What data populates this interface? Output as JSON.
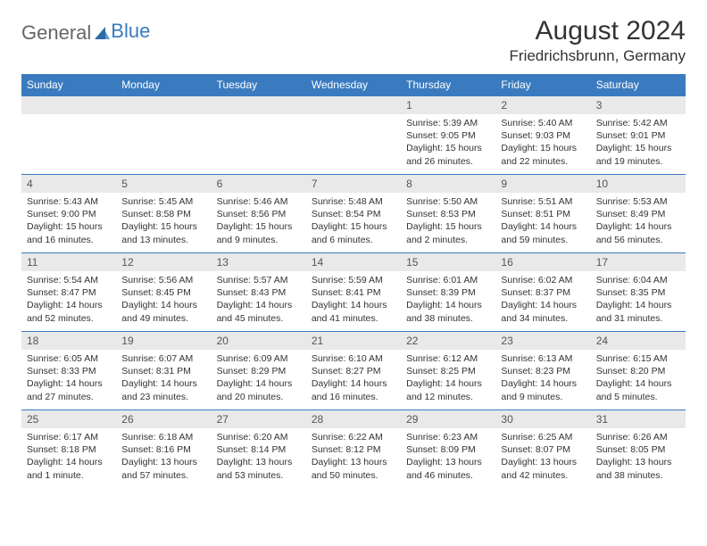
{
  "logo": {
    "text1": "General",
    "text2": "Blue"
  },
  "title": "August 2024",
  "location": "Friedrichsbrunn, Germany",
  "day_headers": [
    "Sunday",
    "Monday",
    "Tuesday",
    "Wednesday",
    "Thursday",
    "Friday",
    "Saturday"
  ],
  "colors": {
    "header_bg": "#3a7bbf",
    "daynum_bg": "#e9e9e9",
    "row_border": "#3a7bbf",
    "text": "#333333",
    "logo_gray": "#666666",
    "logo_blue": "#3a7bbf"
  },
  "weeks": [
    [
      {
        "n": "",
        "sr": "",
        "ss": "",
        "dl": ""
      },
      {
        "n": "",
        "sr": "",
        "ss": "",
        "dl": ""
      },
      {
        "n": "",
        "sr": "",
        "ss": "",
        "dl": ""
      },
      {
        "n": "",
        "sr": "",
        "ss": "",
        "dl": ""
      },
      {
        "n": "1",
        "sr": "Sunrise: 5:39 AM",
        "ss": "Sunset: 9:05 PM",
        "dl": "Daylight: 15 hours and 26 minutes."
      },
      {
        "n": "2",
        "sr": "Sunrise: 5:40 AM",
        "ss": "Sunset: 9:03 PM",
        "dl": "Daylight: 15 hours and 22 minutes."
      },
      {
        "n": "3",
        "sr": "Sunrise: 5:42 AM",
        "ss": "Sunset: 9:01 PM",
        "dl": "Daylight: 15 hours and 19 minutes."
      }
    ],
    [
      {
        "n": "4",
        "sr": "Sunrise: 5:43 AM",
        "ss": "Sunset: 9:00 PM",
        "dl": "Daylight: 15 hours and 16 minutes."
      },
      {
        "n": "5",
        "sr": "Sunrise: 5:45 AM",
        "ss": "Sunset: 8:58 PM",
        "dl": "Daylight: 15 hours and 13 minutes."
      },
      {
        "n": "6",
        "sr": "Sunrise: 5:46 AM",
        "ss": "Sunset: 8:56 PM",
        "dl": "Daylight: 15 hours and 9 minutes."
      },
      {
        "n": "7",
        "sr": "Sunrise: 5:48 AM",
        "ss": "Sunset: 8:54 PM",
        "dl": "Daylight: 15 hours and 6 minutes."
      },
      {
        "n": "8",
        "sr": "Sunrise: 5:50 AM",
        "ss": "Sunset: 8:53 PM",
        "dl": "Daylight: 15 hours and 2 minutes."
      },
      {
        "n": "9",
        "sr": "Sunrise: 5:51 AM",
        "ss": "Sunset: 8:51 PM",
        "dl": "Daylight: 14 hours and 59 minutes."
      },
      {
        "n": "10",
        "sr": "Sunrise: 5:53 AM",
        "ss": "Sunset: 8:49 PM",
        "dl": "Daylight: 14 hours and 56 minutes."
      }
    ],
    [
      {
        "n": "11",
        "sr": "Sunrise: 5:54 AM",
        "ss": "Sunset: 8:47 PM",
        "dl": "Daylight: 14 hours and 52 minutes."
      },
      {
        "n": "12",
        "sr": "Sunrise: 5:56 AM",
        "ss": "Sunset: 8:45 PM",
        "dl": "Daylight: 14 hours and 49 minutes."
      },
      {
        "n": "13",
        "sr": "Sunrise: 5:57 AM",
        "ss": "Sunset: 8:43 PM",
        "dl": "Daylight: 14 hours and 45 minutes."
      },
      {
        "n": "14",
        "sr": "Sunrise: 5:59 AM",
        "ss": "Sunset: 8:41 PM",
        "dl": "Daylight: 14 hours and 41 minutes."
      },
      {
        "n": "15",
        "sr": "Sunrise: 6:01 AM",
        "ss": "Sunset: 8:39 PM",
        "dl": "Daylight: 14 hours and 38 minutes."
      },
      {
        "n": "16",
        "sr": "Sunrise: 6:02 AM",
        "ss": "Sunset: 8:37 PM",
        "dl": "Daylight: 14 hours and 34 minutes."
      },
      {
        "n": "17",
        "sr": "Sunrise: 6:04 AM",
        "ss": "Sunset: 8:35 PM",
        "dl": "Daylight: 14 hours and 31 minutes."
      }
    ],
    [
      {
        "n": "18",
        "sr": "Sunrise: 6:05 AM",
        "ss": "Sunset: 8:33 PM",
        "dl": "Daylight: 14 hours and 27 minutes."
      },
      {
        "n": "19",
        "sr": "Sunrise: 6:07 AM",
        "ss": "Sunset: 8:31 PM",
        "dl": "Daylight: 14 hours and 23 minutes."
      },
      {
        "n": "20",
        "sr": "Sunrise: 6:09 AM",
        "ss": "Sunset: 8:29 PM",
        "dl": "Daylight: 14 hours and 20 minutes."
      },
      {
        "n": "21",
        "sr": "Sunrise: 6:10 AM",
        "ss": "Sunset: 8:27 PM",
        "dl": "Daylight: 14 hours and 16 minutes."
      },
      {
        "n": "22",
        "sr": "Sunrise: 6:12 AM",
        "ss": "Sunset: 8:25 PM",
        "dl": "Daylight: 14 hours and 12 minutes."
      },
      {
        "n": "23",
        "sr": "Sunrise: 6:13 AM",
        "ss": "Sunset: 8:23 PM",
        "dl": "Daylight: 14 hours and 9 minutes."
      },
      {
        "n": "24",
        "sr": "Sunrise: 6:15 AM",
        "ss": "Sunset: 8:20 PM",
        "dl": "Daylight: 14 hours and 5 minutes."
      }
    ],
    [
      {
        "n": "25",
        "sr": "Sunrise: 6:17 AM",
        "ss": "Sunset: 8:18 PM",
        "dl": "Daylight: 14 hours and 1 minute."
      },
      {
        "n": "26",
        "sr": "Sunrise: 6:18 AM",
        "ss": "Sunset: 8:16 PM",
        "dl": "Daylight: 13 hours and 57 minutes."
      },
      {
        "n": "27",
        "sr": "Sunrise: 6:20 AM",
        "ss": "Sunset: 8:14 PM",
        "dl": "Daylight: 13 hours and 53 minutes."
      },
      {
        "n": "28",
        "sr": "Sunrise: 6:22 AM",
        "ss": "Sunset: 8:12 PM",
        "dl": "Daylight: 13 hours and 50 minutes."
      },
      {
        "n": "29",
        "sr": "Sunrise: 6:23 AM",
        "ss": "Sunset: 8:09 PM",
        "dl": "Daylight: 13 hours and 46 minutes."
      },
      {
        "n": "30",
        "sr": "Sunrise: 6:25 AM",
        "ss": "Sunset: 8:07 PM",
        "dl": "Daylight: 13 hours and 42 minutes."
      },
      {
        "n": "31",
        "sr": "Sunrise: 6:26 AM",
        "ss": "Sunset: 8:05 PM",
        "dl": "Daylight: 13 hours and 38 minutes."
      }
    ]
  ]
}
